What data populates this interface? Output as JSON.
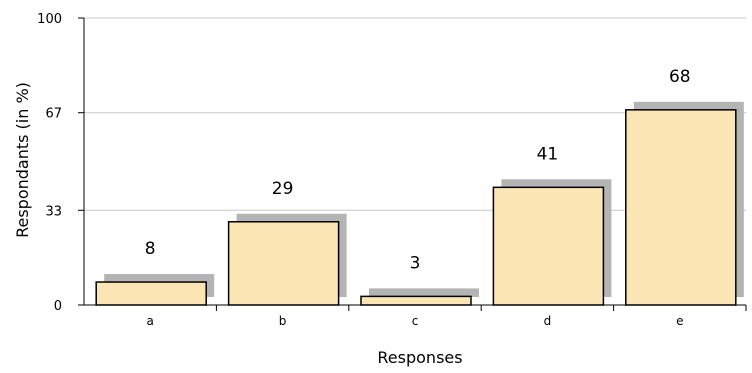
{
  "chart_data": {
    "type": "bar",
    "categories": [
      "a",
      "b",
      "c",
      "d",
      "e"
    ],
    "values": [
      8,
      29,
      3,
      41,
      68
    ],
    "data_labels": [
      "8",
      "29",
      "3",
      "41",
      "68"
    ],
    "xlabel": "Responses",
    "ylabel": "Respondants (in %)",
    "ylim": [
      0,
      100
    ],
    "yticks": [
      0,
      33,
      67,
      100
    ],
    "ytick_labels": [
      "0",
      "33",
      "67",
      "100"
    ],
    "grid": true,
    "colors": {
      "bar_fill": "#fbe5b4",
      "bar_stroke": "#000000",
      "bar_shadow": "#b4b4b4",
      "grid": "#c8c8c8",
      "axis": "#000000"
    }
  }
}
